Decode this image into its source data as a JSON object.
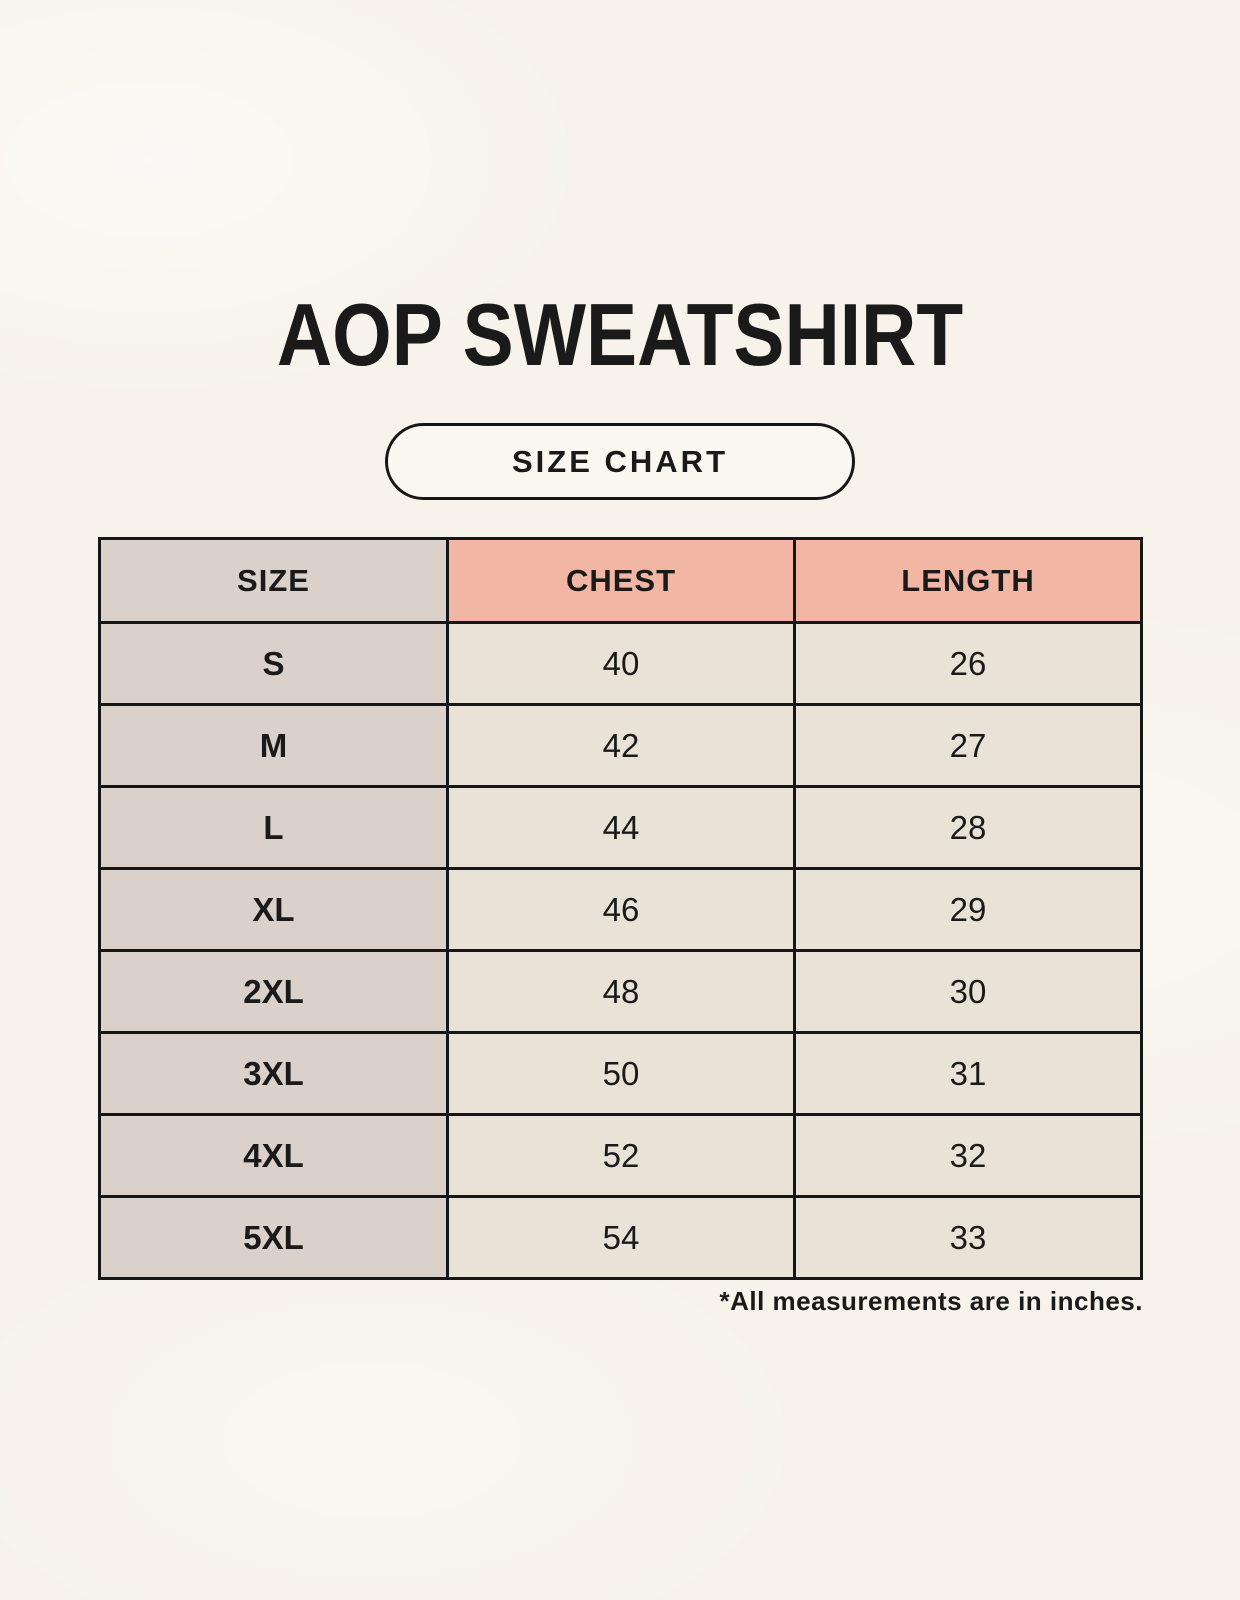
{
  "chart_data": {
    "type": "table",
    "title": "AOP SWEATSHIRT",
    "subtitle": "SIZE CHART",
    "columns": [
      "SIZE",
      "CHEST",
      "LENGTH"
    ],
    "rows": [
      [
        "S",
        40,
        26
      ],
      [
        "M",
        42,
        27
      ],
      [
        "L",
        44,
        28
      ],
      [
        "XL",
        46,
        29
      ],
      [
        "2XL",
        48,
        30
      ],
      [
        "3XL",
        50,
        31
      ],
      [
        "4XL",
        52,
        32
      ],
      [
        "5XL",
        54,
        33
      ]
    ],
    "footnote": "*All measurements are in inches.",
    "units": "inches"
  },
  "colors": {
    "background": "#f7f3ea",
    "badge_background": "#faf7f0",
    "accent_pink": "#f1b6a4",
    "cell_gray": "#d9d1ca",
    "cell_cream": "#e9e2d6",
    "border_dark": "#161616",
    "text": "#1a1a1a"
  }
}
